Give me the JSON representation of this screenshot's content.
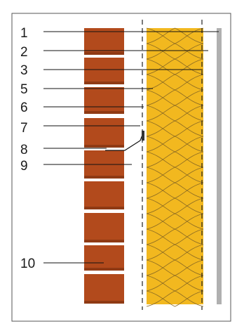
{
  "diagram": {
    "labels": [
      "1",
      "2",
      "3",
      "5",
      "6",
      "7",
      "8",
      "9",
      "10"
    ]
  },
  "colors": {
    "border": "#555555",
    "brick": "#b24a1c",
    "brick_shadow": "#8f3a14",
    "mortar": "#d4d4d4",
    "insulation": "#f2b81f",
    "insulation_pattern": "#8a6a24",
    "cladding": "#b0b0b0",
    "leader": "#111111"
  }
}
